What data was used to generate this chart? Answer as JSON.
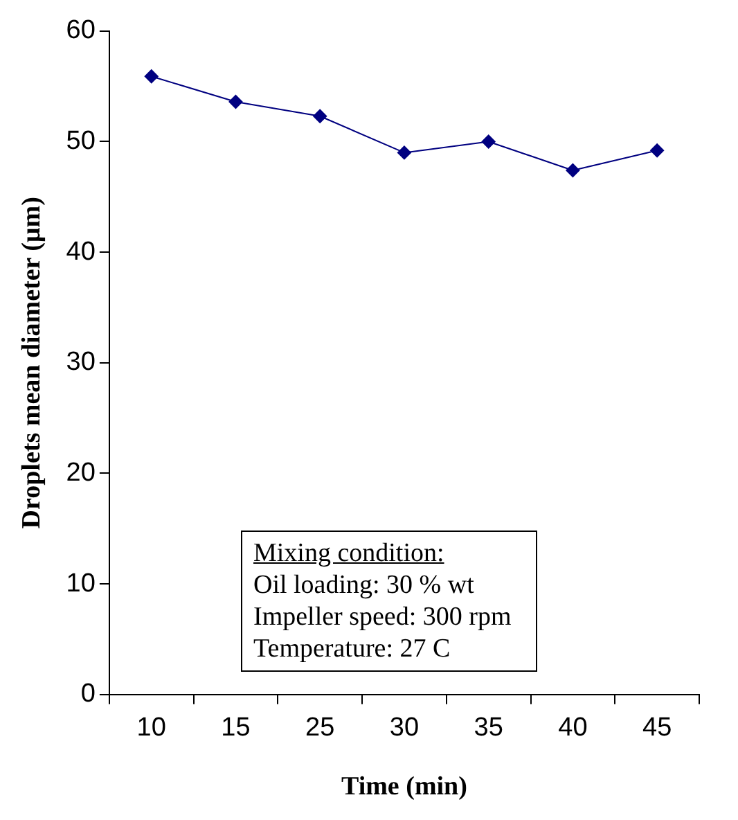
{
  "chart_data": {
    "type": "line",
    "xlabel": "Time (min)",
    "ylabel": "Droplets mean diameter (μm)",
    "categories": [
      "10",
      "15",
      "25",
      "30",
      "35",
      "40",
      "45"
    ],
    "series": [
      {
        "color": "#000080",
        "values": [
          55.9,
          53.6,
          52.3,
          49.0,
          50.0,
          47.4,
          49.2
        ]
      }
    ],
    "ylim": [
      0,
      60
    ],
    "yticks": [
      0,
      10,
      20,
      30,
      40,
      50,
      60
    ],
    "marker": "diamond",
    "legend": false,
    "annotations": [
      "Mixing condition:",
      "Oil loading: 30 % wt",
      "Impeller speed: 300 rpm",
      "Temperature: 27 C"
    ]
  }
}
